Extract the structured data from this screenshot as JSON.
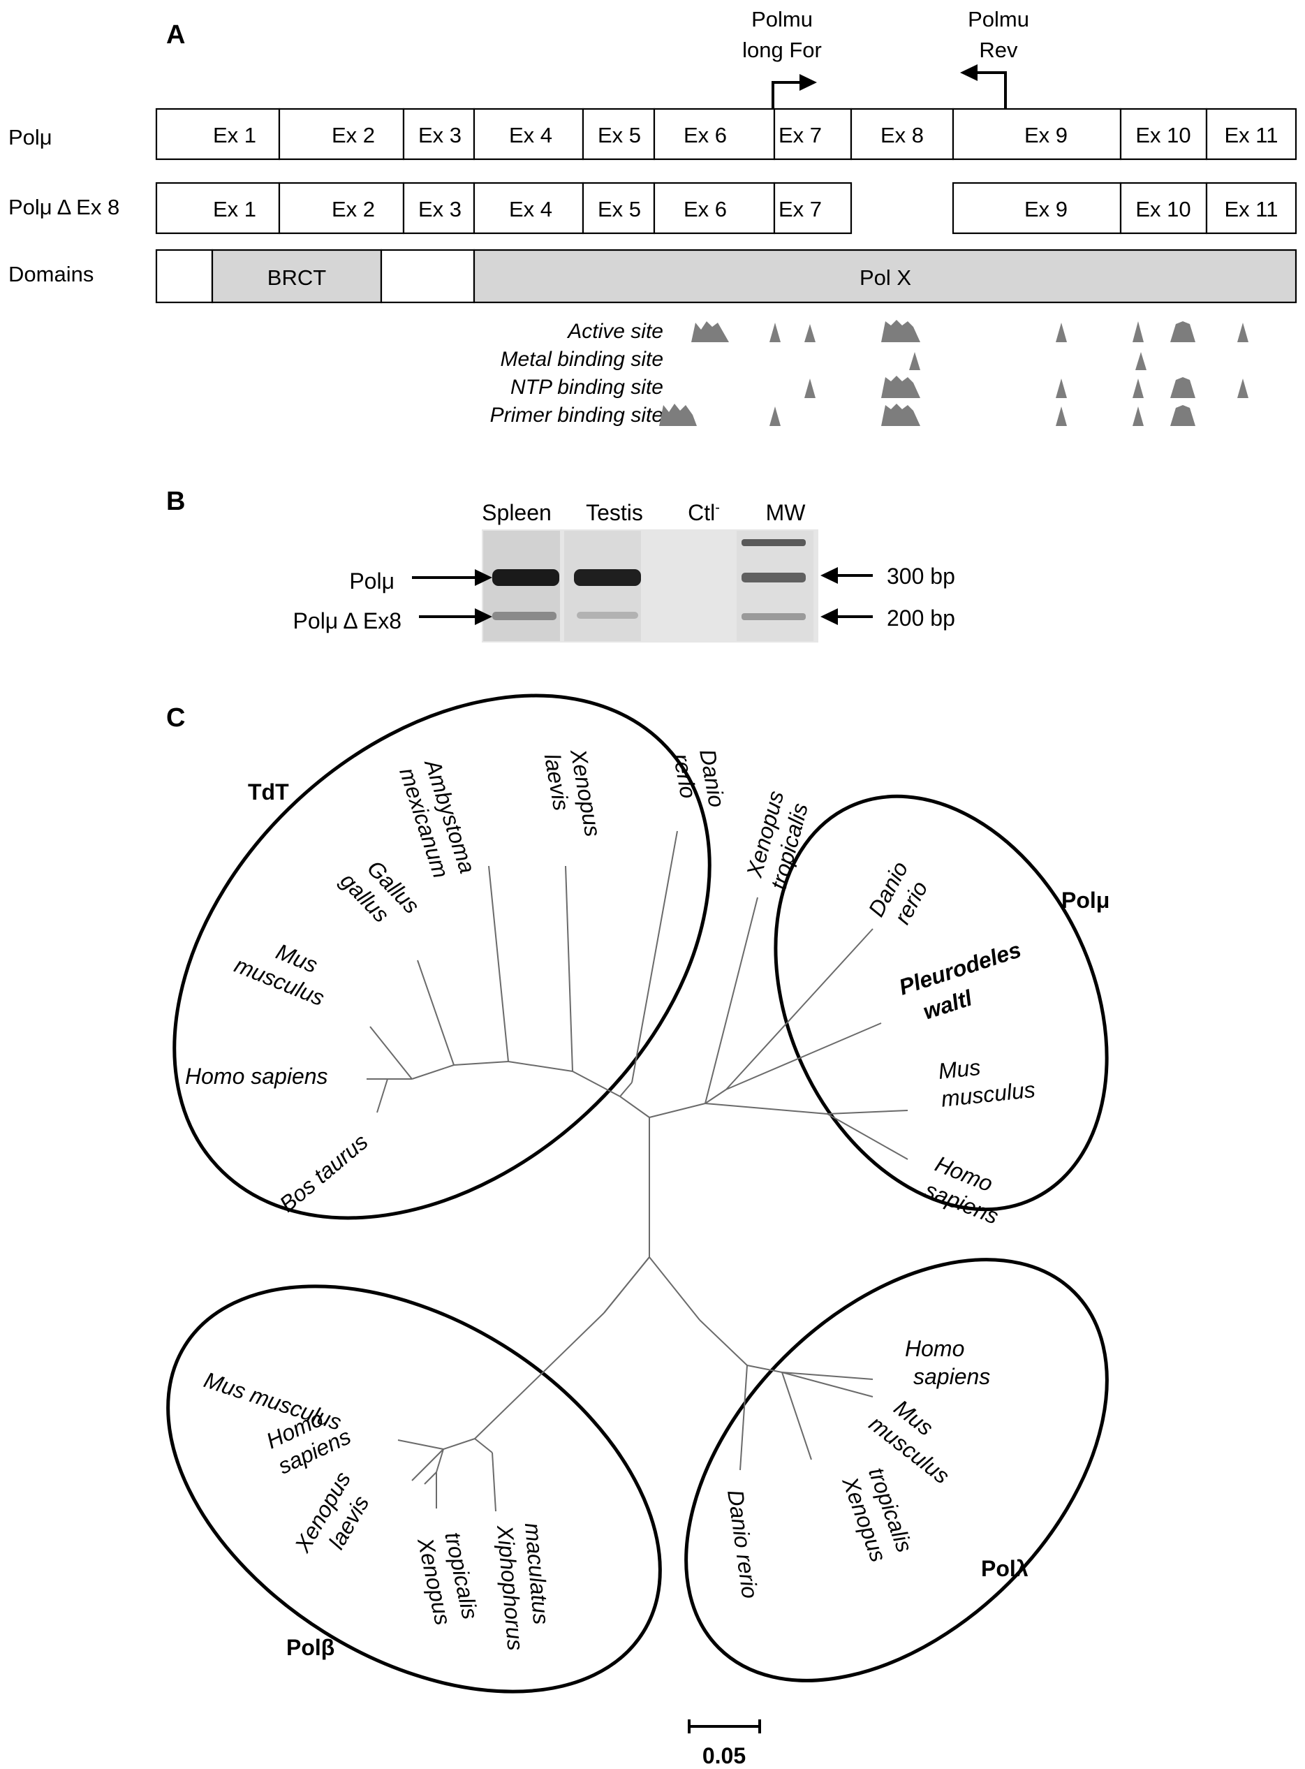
{
  "panel_a": {
    "label": "A",
    "primer_for": [
      "Polmu",
      "long For"
    ],
    "primer_rev": [
      "Polmu",
      "Rev"
    ],
    "row_labels": {
      "full": "Polμ",
      "delta": "Polμ Δ Ex 8",
      "domains": "Domains"
    },
    "exons": [
      "Ex 1",
      "Ex 2",
      "Ex 3",
      "Ex 4",
      "Ex 5",
      "Ex 6",
      "Ex 7",
      "Ex 8",
      "Ex 9",
      "Ex 10",
      "Ex 11"
    ],
    "domains": [
      "BRCT",
      "Pol X"
    ],
    "sites": [
      "Active site",
      "Metal binding site",
      "NTP binding site",
      "Primer binding site"
    ]
  },
  "panel_b": {
    "label": "B",
    "lanes": [
      "Spleen",
      "Testis",
      "Ctl",
      "MW"
    ],
    "ctl_superscript": "-",
    "band_labels": [
      "Polμ",
      "Polμ Δ Ex8"
    ],
    "size_labels": [
      "300 bp",
      "200 bp"
    ]
  },
  "panel_c": {
    "label": "C",
    "groups": {
      "tdt": {
        "name": "TdT",
        "species": [
          [
            "Ambystoma",
            "mexicanum"
          ],
          [
            "Xenopus",
            "laevis"
          ],
          [
            "Danio",
            "rerio"
          ],
          [
            "Gallus",
            "gallus"
          ],
          [
            "Mus",
            "musculus"
          ],
          [
            "Homo sapiens"
          ],
          [
            "Bos taurus"
          ]
        ]
      },
      "polmu": {
        "name": "Polμ",
        "species": [
          [
            "Xenopus",
            "tropicalis"
          ],
          [
            "Danio",
            "rerio"
          ],
          [
            "Pleurodeles",
            "waltl"
          ],
          [
            "Mus",
            "musculus"
          ],
          [
            "Homo",
            "sapiens"
          ]
        ]
      },
      "polbeta": {
        "name": "Polβ",
        "species": [
          [
            "Mus musculus"
          ],
          [
            "Homo",
            "sapiens"
          ],
          [
            "Xenopus",
            "laevis"
          ],
          [
            "Xenopus",
            "tropicalis"
          ],
          [
            "Xiphophorus",
            "maculatus"
          ]
        ]
      },
      "pollambda": {
        "name": "Polλ",
        "species": [
          [
            "Homo",
            "sapiens"
          ],
          [
            "Mus",
            "musculus"
          ],
          [
            "Xenopus",
            "tropicalis"
          ],
          [
            "Danio rerio"
          ]
        ]
      }
    },
    "scale_label": "0.05"
  }
}
